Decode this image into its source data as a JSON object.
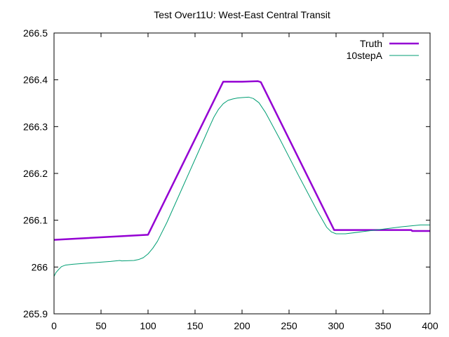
{
  "chart_data": {
    "type": "line",
    "title": "Test Over11U: West-East Central Transit",
    "xlabel": "",
    "ylabel": "",
    "xlim": [
      0,
      400
    ],
    "ylim": [
      265.9,
      266.5
    ],
    "x_ticks": [
      "0",
      "50",
      "100",
      "150",
      "200",
      "250",
      "300",
      "350",
      "400"
    ],
    "y_ticks": [
      "265.9",
      "266",
      "266.1",
      "266.2",
      "266.3",
      "266.4",
      "266.5"
    ],
    "grid": false,
    "legend_position": "top-right",
    "series": [
      {
        "name": "Truth",
        "color": "#9400d3",
        "points": [
          [
            0,
            266.058
          ],
          [
            100,
            266.069
          ],
          [
            180,
            266.396
          ],
          [
            200,
            266.396
          ],
          [
            217,
            266.397
          ],
          [
            220,
            266.395
          ],
          [
            298,
            266.079
          ],
          [
            380,
            266.079
          ],
          [
            381,
            266.077
          ],
          [
            400,
            266.077
          ]
        ]
      },
      {
        "name": "10stepA",
        "color": "#009e73",
        "points": [
          [
            0,
            265.98
          ],
          [
            2,
            265.988
          ],
          [
            5,
            265.995
          ],
          [
            8,
            266.001
          ],
          [
            12,
            266.004
          ],
          [
            20,
            266.006
          ],
          [
            40,
            266.009
          ],
          [
            60,
            266.012
          ],
          [
            70,
            266.014
          ],
          [
            72,
            266.013
          ],
          [
            85,
            266.014
          ],
          [
            90,
            266.016
          ],
          [
            95,
            266.02
          ],
          [
            100,
            266.028
          ],
          [
            105,
            266.04
          ],
          [
            110,
            266.055
          ],
          [
            120,
            266.095
          ],
          [
            130,
            266.14
          ],
          [
            140,
            266.185
          ],
          [
            150,
            266.23
          ],
          [
            160,
            266.275
          ],
          [
            165,
            266.298
          ],
          [
            170,
            266.32
          ],
          [
            175,
            266.337
          ],
          [
            180,
            266.349
          ],
          [
            185,
            266.356
          ],
          [
            190,
            266.359
          ],
          [
            195,
            266.361
          ],
          [
            200,
            266.362
          ],
          [
            207,
            266.363
          ],
          [
            212,
            266.36
          ],
          [
            218,
            266.351
          ],
          [
            225,
            266.33
          ],
          [
            240,
            266.274
          ],
          [
            260,
            266.196
          ],
          [
            280,
            266.12
          ],
          [
            290,
            266.085
          ],
          [
            295,
            266.075
          ],
          [
            300,
            266.071
          ],
          [
            310,
            266.071
          ],
          [
            330,
            266.076
          ],
          [
            350,
            266.081
          ],
          [
            370,
            266.086
          ],
          [
            390,
            266.09
          ],
          [
            400,
            266.09
          ]
        ]
      }
    ]
  }
}
